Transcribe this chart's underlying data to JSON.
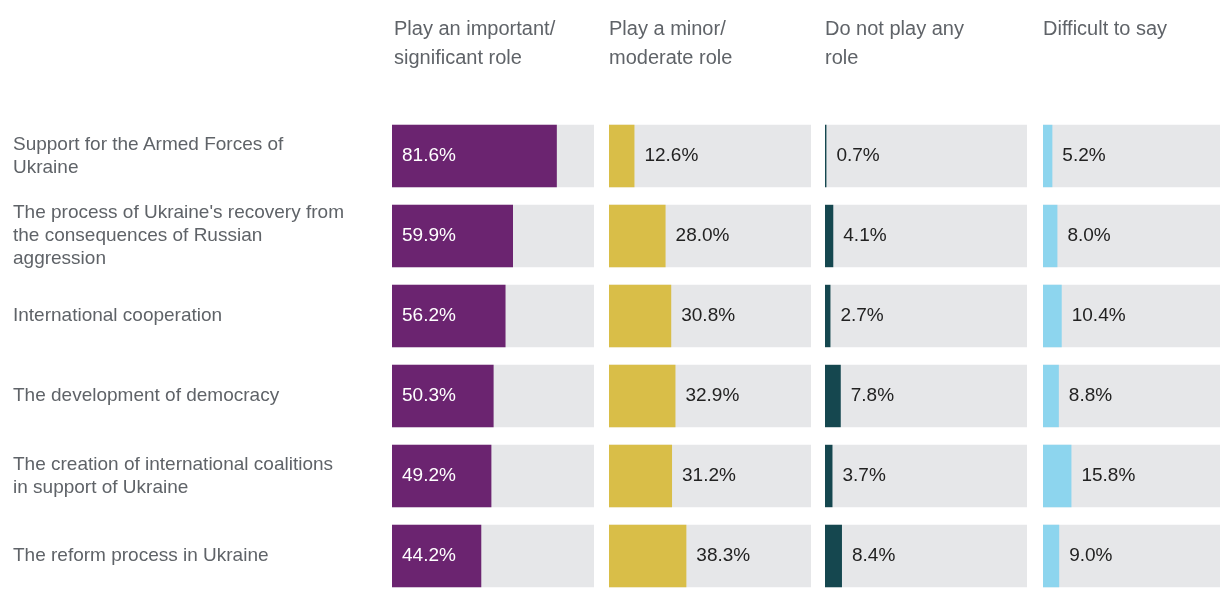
{
  "chart_data": [
    {
      "type": "bar",
      "orientation": "horizontal",
      "title": "Play an important/significant role",
      "categories": [
        "Support for the Armed Forces of Ukraine",
        "The process of Ukraine's recovery from the consequences of Russian aggression",
        "International cooperation",
        "The development of democracy",
        "The creation of international coalitions in support of Ukraine",
        "The reform process in Ukraine"
      ],
      "values": [
        81.6,
        59.9,
        56.2,
        50.3,
        49.2,
        44.2
      ],
      "value_labels": [
        "81.6%",
        "59.9%",
        "56.2%",
        "50.3%",
        "49.2%",
        "44.2%"
      ],
      "color": "#6b2470",
      "xlim": [
        0,
        100
      ],
      "tick_labels": "y"
    },
    {
      "type": "bar",
      "orientation": "horizontal",
      "title": "Play a minor/moderate role",
      "categories": [
        null,
        null,
        null,
        null,
        null,
        null
      ],
      "values": [
        12.6,
        28.0,
        30.8,
        32.9,
        31.2,
        38.3
      ],
      "value_labels": [
        "12.6%",
        "28.0%",
        "30.8%",
        "32.9%",
        "31.2%",
        "38.3%"
      ],
      "color": "#d9be48",
      "xlim": [
        0,
        100
      ],
      "tick_labels": false
    },
    {
      "type": "bar",
      "orientation": "horizontal",
      "title": "Do not play any role",
      "categories": [
        null,
        null,
        null,
        null,
        null,
        null
      ],
      "values": [
        0.7,
        4.1,
        2.7,
        7.8,
        3.7,
        8.4
      ],
      "value_labels": [
        "0.7%",
        "4.1%",
        "2.7%",
        "7.8%",
        "3.7%",
        "8.4%"
      ],
      "color": "#15474f",
      "xlim": [
        0,
        100
      ],
      "tick_labels": false
    },
    {
      "type": "bar",
      "orientation": "horizontal",
      "title": "Difficult to say",
      "categories": [
        null,
        null,
        null,
        null,
        null,
        null
      ],
      "values": [
        5.2,
        8.0,
        10.4,
        8.8,
        15.8,
        9.0
      ],
      "value_labels": [
        "5.2%",
        "8.0%",
        "10.4%",
        "8.8%",
        "15.8%",
        "9.0%"
      ],
      "color": "#8dd5ee",
      "xlim": [
        0,
        100
      ],
      "tick_labels": false
    }
  ]
}
